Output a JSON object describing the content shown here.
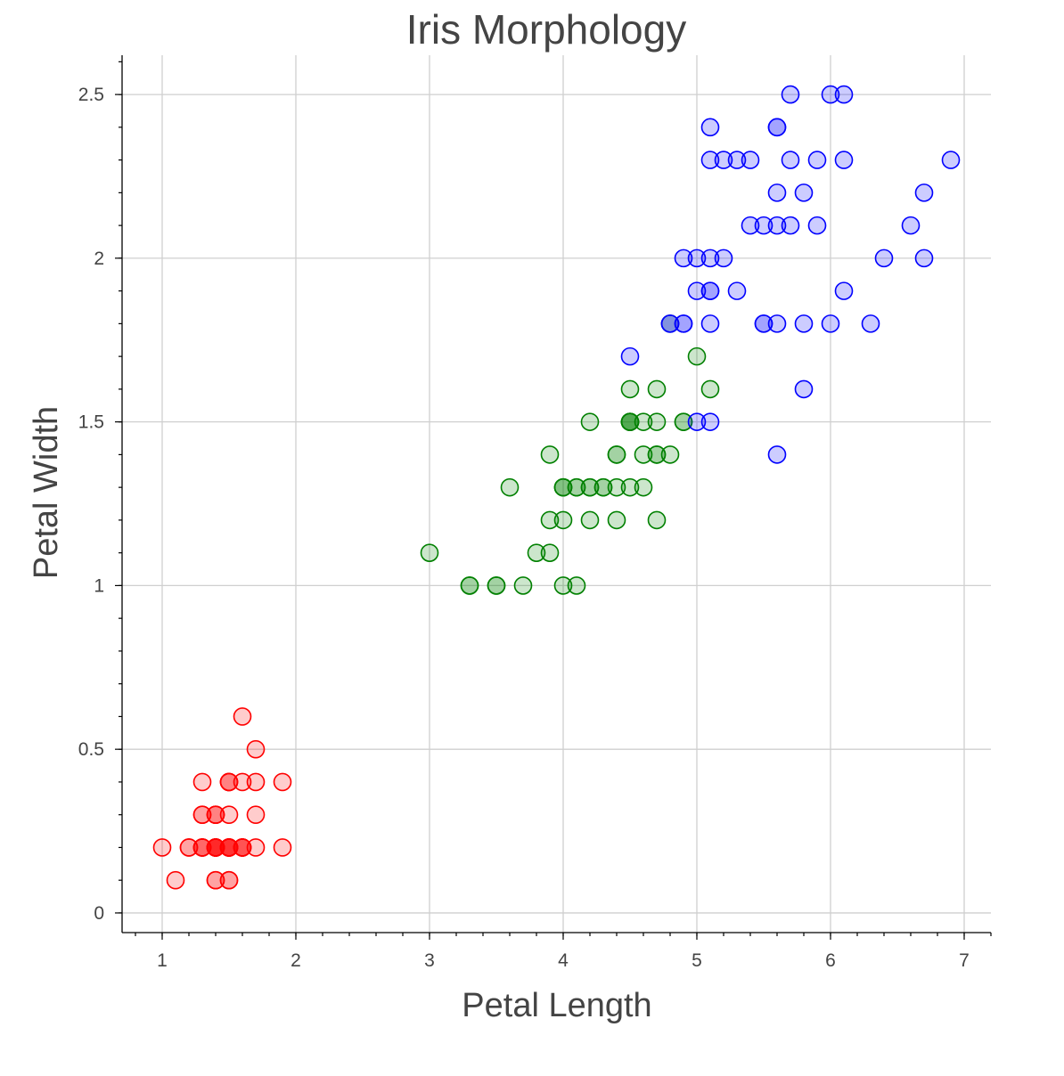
{
  "chart_data": {
    "type": "scatter",
    "title": "Iris Morphology",
    "xlabel": "Petal Length",
    "ylabel": "Petal Width",
    "xlim": [
      0.7,
      7.2
    ],
    "ylim": [
      -0.06,
      2.62
    ],
    "x_ticks": [
      1,
      2,
      3,
      4,
      5,
      6,
      7
    ],
    "x_tick_labels": [
      "1",
      "2",
      "3",
      "4",
      "5",
      "6",
      "7"
    ],
    "y_ticks": [
      0,
      0.5,
      1,
      1.5,
      2,
      2.5
    ],
    "y_tick_labels": [
      "0",
      "0.5",
      "1",
      "1.5",
      "2",
      "2.5"
    ],
    "grid": true,
    "series": [
      {
        "color": "#ff0000",
        "points": [
          [
            1.4,
            0.2
          ],
          [
            1.4,
            0.2
          ],
          [
            1.3,
            0.2
          ],
          [
            1.5,
            0.2
          ],
          [
            1.4,
            0.2
          ],
          [
            1.7,
            0.4
          ],
          [
            1.4,
            0.3
          ],
          [
            1.5,
            0.2
          ],
          [
            1.4,
            0.2
          ],
          [
            1.5,
            0.1
          ],
          [
            1.5,
            0.2
          ],
          [
            1.6,
            0.2
          ],
          [
            1.4,
            0.1
          ],
          [
            1.1,
            0.1
          ],
          [
            1.2,
            0.2
          ],
          [
            1.5,
            0.4
          ],
          [
            1.3,
            0.4
          ],
          [
            1.4,
            0.3
          ],
          [
            1.7,
            0.3
          ],
          [
            1.5,
            0.3
          ],
          [
            1.7,
            0.2
          ],
          [
            1.5,
            0.4
          ],
          [
            1.0,
            0.2
          ],
          [
            1.7,
            0.5
          ],
          [
            1.9,
            0.2
          ],
          [
            1.6,
            0.2
          ],
          [
            1.6,
            0.4
          ],
          [
            1.5,
            0.2
          ],
          [
            1.4,
            0.2
          ],
          [
            1.6,
            0.2
          ],
          [
            1.6,
            0.2
          ],
          [
            1.5,
            0.4
          ],
          [
            1.5,
            0.1
          ],
          [
            1.4,
            0.2
          ],
          [
            1.5,
            0.2
          ],
          [
            1.2,
            0.2
          ],
          [
            1.3,
            0.2
          ],
          [
            1.4,
            0.1
          ],
          [
            1.3,
            0.2
          ],
          [
            1.5,
            0.2
          ],
          [
            1.3,
            0.3
          ],
          [
            1.3,
            0.3
          ],
          [
            1.3,
            0.2
          ],
          [
            1.6,
            0.6
          ],
          [
            1.9,
            0.4
          ],
          [
            1.4,
            0.3
          ],
          [
            1.6,
            0.2
          ],
          [
            1.4,
            0.2
          ],
          [
            1.5,
            0.2
          ],
          [
            1.4,
            0.2
          ]
        ]
      },
      {
        "color": "#008000",
        "points": [
          [
            4.7,
            1.4
          ],
          [
            4.5,
            1.5
          ],
          [
            4.9,
            1.5
          ],
          [
            4.0,
            1.3
          ],
          [
            4.6,
            1.5
          ],
          [
            4.5,
            1.3
          ],
          [
            4.7,
            1.6
          ],
          [
            3.3,
            1.0
          ],
          [
            4.6,
            1.3
          ],
          [
            3.9,
            1.4
          ],
          [
            3.5,
            1.0
          ],
          [
            4.2,
            1.5
          ],
          [
            4.0,
            1.0
          ],
          [
            4.7,
            1.4
          ],
          [
            3.6,
            1.3
          ],
          [
            4.4,
            1.4
          ],
          [
            4.5,
            1.5
          ],
          [
            4.1,
            1.0
          ],
          [
            4.5,
            1.5
          ],
          [
            3.9,
            1.1
          ],
          [
            4.8,
            1.8
          ],
          [
            4.0,
            1.3
          ],
          [
            4.9,
            1.5
          ],
          [
            4.7,
            1.2
          ],
          [
            4.3,
            1.3
          ],
          [
            4.4,
            1.4
          ],
          [
            4.8,
            1.4
          ],
          [
            5.0,
            1.7
          ],
          [
            4.5,
            1.5
          ],
          [
            3.5,
            1.0
          ],
          [
            3.8,
            1.1
          ],
          [
            3.7,
            1.0
          ],
          [
            3.9,
            1.2
          ],
          [
            5.1,
            1.6
          ],
          [
            4.5,
            1.5
          ],
          [
            4.5,
            1.6
          ],
          [
            4.7,
            1.5
          ],
          [
            4.4,
            1.3
          ],
          [
            4.1,
            1.3
          ],
          [
            4.0,
            1.3
          ],
          [
            4.4,
            1.2
          ],
          [
            4.6,
            1.4
          ],
          [
            4.0,
            1.2
          ],
          [
            3.3,
            1.0
          ],
          [
            4.2,
            1.3
          ],
          [
            4.2,
            1.2
          ],
          [
            4.2,
            1.3
          ],
          [
            4.3,
            1.3
          ],
          [
            3.0,
            1.1
          ],
          [
            4.1,
            1.3
          ]
        ]
      },
      {
        "color": "#0000ff",
        "points": [
          [
            6.0,
            2.5
          ],
          [
            5.1,
            1.9
          ],
          [
            5.9,
            2.1
          ],
          [
            5.6,
            1.8
          ],
          [
            5.8,
            2.2
          ],
          [
            6.6,
            2.1
          ],
          [
            4.5,
            1.7
          ],
          [
            6.3,
            1.8
          ],
          [
            5.8,
            1.8
          ],
          [
            6.1,
            2.5
          ],
          [
            5.1,
            2.0
          ],
          [
            5.3,
            1.9
          ],
          [
            5.5,
            2.1
          ],
          [
            5.0,
            2.0
          ],
          [
            5.1,
            2.4
          ],
          [
            5.3,
            2.3
          ],
          [
            5.5,
            1.8
          ],
          [
            6.7,
            2.2
          ],
          [
            6.9,
            2.3
          ],
          [
            5.0,
            1.5
          ],
          [
            5.7,
            2.3
          ],
          [
            4.9,
            2.0
          ],
          [
            6.7,
            2.0
          ],
          [
            4.9,
            1.8
          ],
          [
            5.7,
            2.1
          ],
          [
            6.0,
            1.8
          ],
          [
            4.8,
            1.8
          ],
          [
            4.9,
            1.8
          ],
          [
            5.6,
            2.1
          ],
          [
            5.8,
            1.6
          ],
          [
            6.1,
            1.9
          ],
          [
            6.4,
            2.0
          ],
          [
            5.6,
            2.2
          ],
          [
            5.1,
            1.5
          ],
          [
            5.6,
            1.4
          ],
          [
            6.1,
            2.3
          ],
          [
            5.6,
            2.4
          ],
          [
            5.5,
            1.8
          ],
          [
            4.8,
            1.8
          ],
          [
            5.4,
            2.1
          ],
          [
            5.6,
            2.4
          ],
          [
            5.1,
            2.3
          ],
          [
            5.1,
            1.9
          ],
          [
            5.9,
            2.3
          ],
          [
            5.7,
            2.5
          ],
          [
            5.2,
            2.3
          ],
          [
            5.0,
            1.9
          ],
          [
            5.2,
            2.0
          ],
          [
            5.4,
            2.3
          ],
          [
            5.1,
            1.8
          ]
        ]
      }
    ]
  }
}
